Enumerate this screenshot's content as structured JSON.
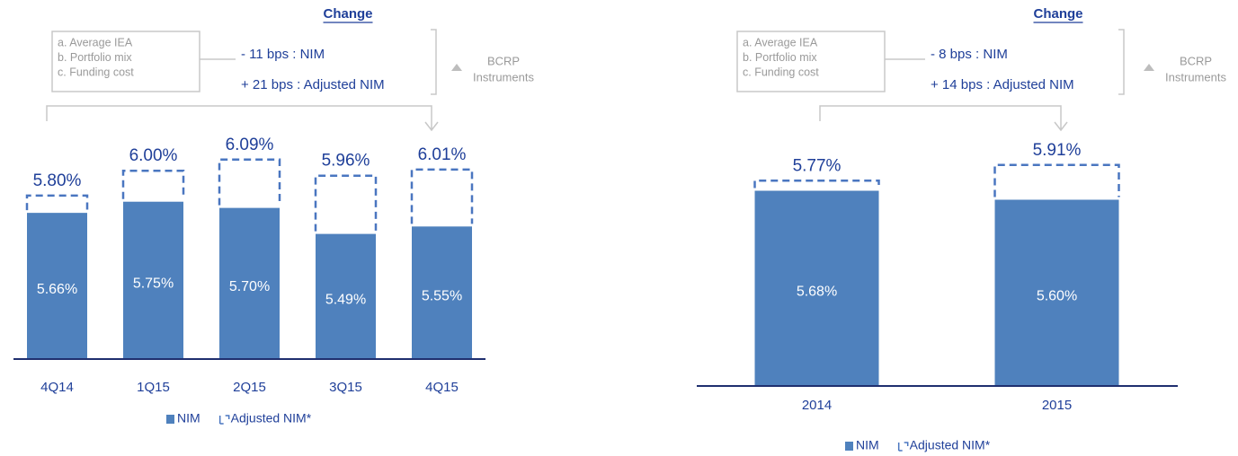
{
  "chart_data": [
    {
      "type": "bar",
      "categories": [
        "4Q14",
        "1Q15",
        "2Q15",
        "3Q15",
        "4Q15"
      ],
      "series": [
        {
          "name": "NIM",
          "color": "#4f81bd",
          "style": "solid",
          "values": [
            5.66,
            5.75,
            5.7,
            5.49,
            5.55
          ],
          "value_labels": [
            "5.66%",
            "5.75%",
            "5.70%",
            "5.49%",
            "5.55%"
          ]
        },
        {
          "name": "Adjusted NIM*",
          "color": "#4a76c0",
          "style": "dashed",
          "values": [
            5.8,
            6.0,
            6.09,
            5.96,
            6.01
          ],
          "value_labels": [
            "5.80%",
            "6.00%",
            "6.09%",
            "5.96%",
            "6.01%"
          ]
        }
      ],
      "ylim": [
        4.48,
        6.4
      ],
      "annotations": {
        "heading": "Change",
        "drivers": [
          "a. Average IEA",
          "b. Portfolio mix",
          "c. Funding cost"
        ],
        "changes": [
          "-  11 bps : NIM",
          "+ 21 bps : Adjusted NIM"
        ],
        "note": [
          "BCRP",
          "Instruments"
        ]
      }
    },
    {
      "type": "bar",
      "categories": [
        "2014",
        "2015"
      ],
      "series": [
        {
          "name": "NIM",
          "color": "#4f81bd",
          "style": "solid",
          "values": [
            5.68,
            5.6
          ],
          "value_labels": [
            "5.68%",
            "5.60%"
          ]
        },
        {
          "name": "Adjusted NIM*",
          "color": "#4a76c0",
          "style": "dashed",
          "values": [
            5.77,
            5.91
          ],
          "value_labels": [
            "5.77%",
            "5.91%"
          ]
        }
      ],
      "ylim": [
        3.94,
        6.0
      ],
      "annotations": {
        "heading": "Change",
        "drivers": [
          "a. Average IEA",
          "b. Portfolio mix",
          "c. Funding cost"
        ],
        "changes": [
          "-  8 bps : NIM",
          "+ 14 bps : Adjusted NIM"
        ],
        "note": [
          "BCRP",
          "Instruments"
        ]
      }
    }
  ]
}
